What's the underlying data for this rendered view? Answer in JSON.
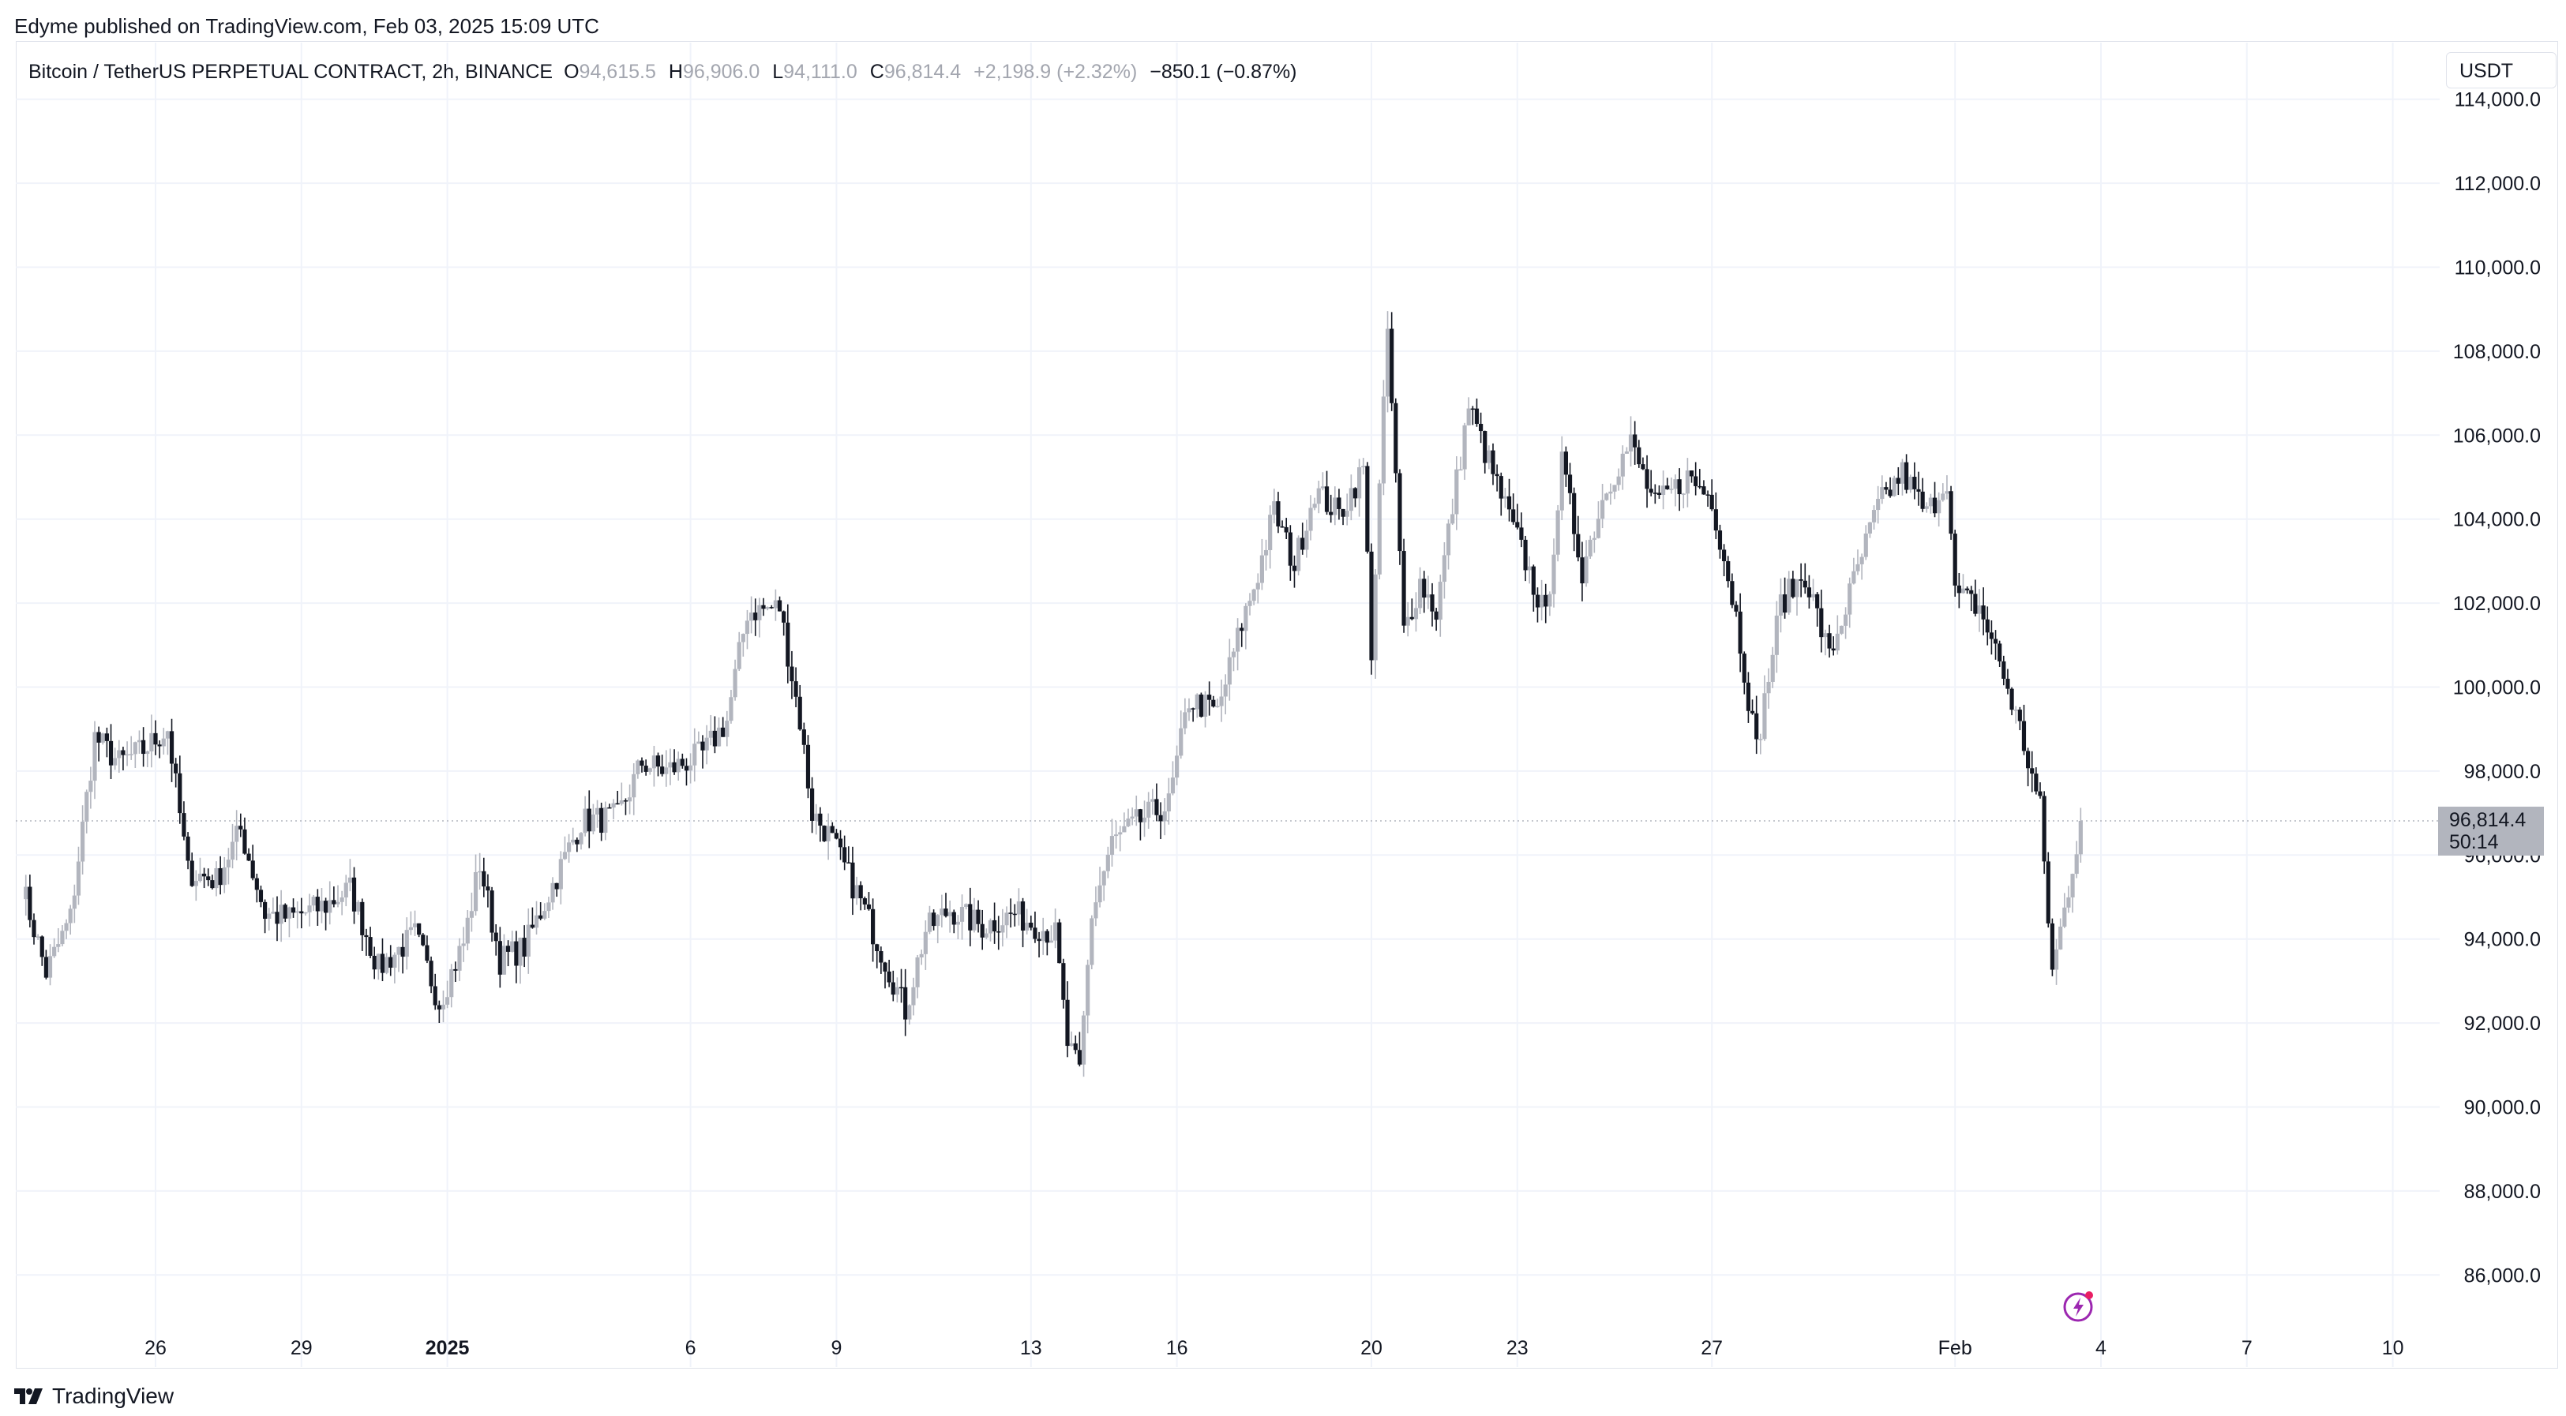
{
  "publisher_text": "Edyme published on TradingView.com, Feb 03, 2025 15:09 UTC",
  "header": {
    "symbol": "Bitcoin / TetherUS PERPETUAL CONTRACT, 2h, BINANCE",
    "open_key": "O",
    "open": "94,615.5",
    "high_key": "H",
    "high": "96,906.0",
    "low_key": "L",
    "low": "94,111.0",
    "close_key": "C",
    "close": "96,814.4",
    "change_prev": "+2,198.9 (+2.32%)",
    "change_current": "−850.1 (−0.87%)"
  },
  "currency": "USDT",
  "price_badge": {
    "price": "96,814.4",
    "countdown": "50:14",
    "color": "#b2b5be"
  },
  "footer": {
    "brand": "TradingView",
    "icon": "tradingview-logo-icon"
  },
  "flash_icon": "lightning-icon",
  "colors": {
    "up": "#b2b5be",
    "down": "#131722",
    "grid": "#f0f3fa"
  },
  "chart_data": {
    "type": "candlestick",
    "interval": "2h",
    "y_axis": {
      "ticks": [
        86000,
        88000,
        90000,
        92000,
        94000,
        96000,
        98000,
        100000,
        102000,
        104000,
        106000,
        108000,
        110000,
        112000,
        114000
      ],
      "labels": [
        "86,000.0",
        "88,000.0",
        "90,000.0",
        "92,000.0",
        "94,000.0",
        "96,000.0",
        "98,000.0",
        "100,000.0",
        "102,000.0",
        "104,000.0",
        "106,000.0",
        "108,000.0",
        "110,000.0",
        "112,000.0",
        "114,000.0"
      ],
      "ylim": [
        85000,
        114000
      ]
    },
    "x_axis": {
      "labels": [
        {
          "text": "26",
          "date": "2024-12-26",
          "bold": false
        },
        {
          "text": "29",
          "date": "2024-12-29",
          "bold": false
        },
        {
          "text": "2025",
          "date": "2025-01-01",
          "bold": true
        },
        {
          "text": "6",
          "date": "2025-01-06",
          "bold": false
        },
        {
          "text": "9",
          "date": "2025-01-09",
          "bold": false
        },
        {
          "text": "13",
          "date": "2025-01-13",
          "bold": false
        },
        {
          "text": "16",
          "date": "2025-01-16",
          "bold": false
        },
        {
          "text": "20",
          "date": "2025-01-20",
          "bold": false
        },
        {
          "text": "23",
          "date": "2025-01-23",
          "bold": false
        },
        {
          "text": "27",
          "date": "2025-01-27",
          "bold": false
        },
        {
          "text": "Feb",
          "date": "2025-02-01",
          "bold": false
        },
        {
          "text": "4",
          "date": "2025-02-04",
          "bold": false
        },
        {
          "text": "7",
          "date": "2025-02-07",
          "bold": false
        },
        {
          "text": "10",
          "date": "2025-02-10",
          "bold": false
        }
      ]
    },
    "path": [
      [
        "2024-12-23T06:00",
        95300
      ],
      [
        "2024-12-23T18:00",
        93200
      ],
      [
        "2024-12-24T06:00",
        94500
      ],
      [
        "2024-12-24T18:00",
        98800
      ],
      [
        "2024-12-25T06:00",
        98200
      ],
      [
        "2024-12-25T18:00",
        98500
      ],
      [
        "2024-12-26T06:00",
        99000
      ],
      [
        "2024-12-26T16:00",
        95600
      ],
      [
        "2024-12-27T06:00",
        95400
      ],
      [
        "2024-12-27T18:00",
        96600
      ],
      [
        "2024-12-28T06:00",
        94600
      ],
      [
        "2024-12-28T18:00",
        94500
      ],
      [
        "2024-12-29T12:00",
        94800
      ],
      [
        "2024-12-30T00:00",
        95200
      ],
      [
        "2024-12-30T14:00",
        93300
      ],
      [
        "2024-12-31T08:00",
        94100
      ],
      [
        "2024-12-31T20:00",
        92500
      ],
      [
        "2025-01-01T08:00",
        93900
      ],
      [
        "2025-01-01T16:00",
        95800
      ],
      [
        "2025-01-02T02:00",
        93500
      ],
      [
        "2025-01-02T14:00",
        93800
      ],
      [
        "2025-01-03T06:00",
        95500
      ],
      [
        "2025-01-03T18:00",
        96800
      ],
      [
        "2025-01-04T12:00",
        96900
      ],
      [
        "2025-01-05T00:00",
        98200
      ],
      [
        "2025-01-05T12:00",
        98000
      ],
      [
        "2025-01-06T06:00",
        98400
      ],
      [
        "2025-01-06T18:00",
        99200
      ],
      [
        "2025-01-07T04:00",
        101800
      ],
      [
        "2025-01-07T20:00",
        101900
      ],
      [
        "2025-01-08T06:00",
        99200
      ],
      [
        "2025-01-08T12:00",
        97000
      ],
      [
        "2025-01-08T20:00",
        96500
      ],
      [
        "2025-01-09T12:00",
        94900
      ],
      [
        "2025-01-10T00:00",
        93500
      ],
      [
        "2025-01-10T10:00",
        92300
      ],
      [
        "2025-01-10T20:00",
        94200
      ],
      [
        "2025-01-11T08:00",
        94700
      ],
      [
        "2025-01-12T00:00",
        94300
      ],
      [
        "2025-01-12T16:00",
        94600
      ],
      [
        "2025-01-13T12:00",
        94100
      ],
      [
        "2025-01-13T18:00",
        91500
      ],
      [
        "2025-01-14T00:00",
        90800
      ],
      [
        "2025-01-14T06:00",
        94600
      ],
      [
        "2025-01-14T16:00",
        96300
      ],
      [
        "2025-01-15T08:00",
        96900
      ],
      [
        "2025-01-15T20:00",
        97200
      ],
      [
        "2025-01-16T06:00",
        99700
      ],
      [
        "2025-01-16T20:00",
        99400
      ],
      [
        "2025-01-17T08:00",
        101500
      ],
      [
        "2025-01-17T16:00",
        102700
      ],
      [
        "2025-01-18T00:00",
        104200
      ],
      [
        "2025-01-18T10:00",
        102900
      ],
      [
        "2025-01-18T20:00",
        104700
      ],
      [
        "2025-01-19T08:00",
        104100
      ],
      [
        "2025-01-19T20:00",
        105200
      ],
      [
        "2025-01-20T00:00",
        100900
      ],
      [
        "2025-01-20T08:00",
        108500
      ],
      [
        "2025-01-20T16:00",
        101300
      ],
      [
        "2025-01-21T00:00",
        102500
      ],
      [
        "2025-01-21T08:00",
        101800
      ],
      [
        "2025-01-21T16:00",
        104300
      ],
      [
        "2025-01-22T00:00",
        106700
      ],
      [
        "2025-01-22T14:00",
        104800
      ],
      [
        "2025-01-23T04:00",
        103000
      ],
      [
        "2025-01-23T14:00",
        101600
      ],
      [
        "2025-01-23T22:00",
        105300
      ],
      [
        "2025-01-24T08:00",
        102800
      ],
      [
        "2025-01-24T20:00",
        104800
      ],
      [
        "2025-01-25T08:00",
        105800
      ],
      [
        "2025-01-25T20:00",
        104300
      ],
      [
        "2025-01-26T12:00",
        105000
      ],
      [
        "2025-01-27T00:00",
        104500
      ],
      [
        "2025-01-27T12:00",
        101700
      ],
      [
        "2025-01-27T22:00",
        98500
      ],
      [
        "2025-01-28T10:00",
        102000
      ],
      [
        "2025-01-28T22:00",
        102700
      ],
      [
        "2025-01-29T10:00",
        100700
      ],
      [
        "2025-01-29T22:00",
        102500
      ],
      [
        "2025-01-30T10:00",
        104300
      ],
      [
        "2025-01-30T22:00",
        105100
      ],
      [
        "2025-01-31T10:00",
        104100
      ],
      [
        "2025-01-31T20:00",
        105000
      ],
      [
        "2025-02-01T00:00",
        102200
      ],
      [
        "2025-02-01T12:00",
        101900
      ],
      [
        "2025-02-01T22:00",
        100600
      ],
      [
        "2025-02-02T08:00",
        99000
      ],
      [
        "2025-02-02T18:00",
        97100
      ],
      [
        "2025-02-03T00:00",
        93200
      ],
      [
        "2025-02-03T06:00",
        94700
      ],
      [
        "2025-02-03T14:00",
        96814
      ]
    ]
  }
}
